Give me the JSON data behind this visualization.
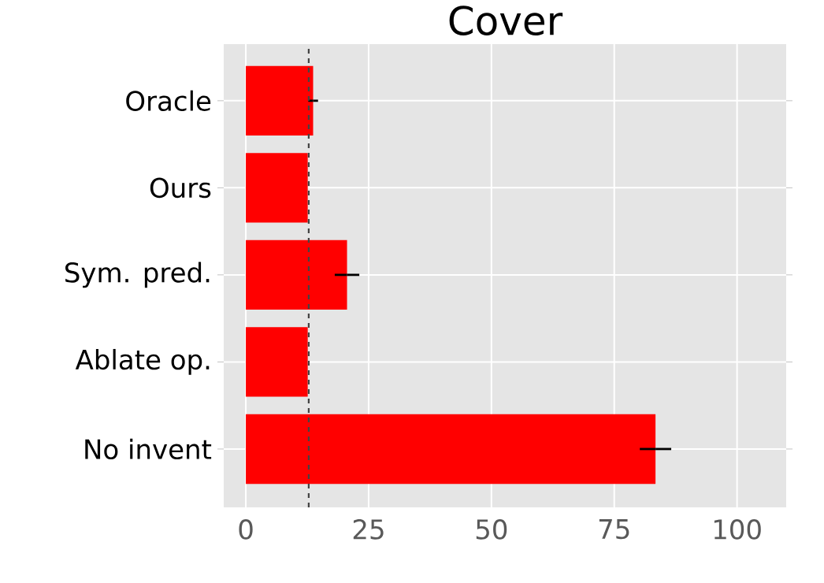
{
  "chart_data": {
    "type": "bar",
    "orientation": "horizontal",
    "title": "Cover",
    "categories": [
      "Oracle",
      "Ours",
      "Sym. pred.",
      "Ablate op.",
      "No invent"
    ],
    "values": [
      13.7,
      12.6,
      20.6,
      12.6,
      83.4
    ],
    "errors": [
      1.0,
      null,
      2.5,
      null,
      3.2
    ],
    "color": "#ff0000",
    "xlim": [
      -4.5,
      110
    ],
    "xticks": [
      0,
      25,
      50,
      75,
      100
    ],
    "ref_lines": [
      {
        "axis": "x",
        "value": 12.8,
        "color": "#444444",
        "line_style": "dashed"
      }
    ],
    "grid": true
  }
}
